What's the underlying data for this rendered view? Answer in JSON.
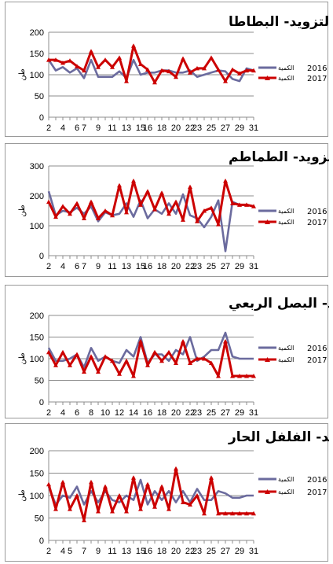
{
  "chart_data": [
    {
      "type": "line",
      "title": "تطور التزويد- البطاطا",
      "ylabel": "طن",
      "ylim": [
        0,
        200
      ],
      "yticks": [
        0,
        50,
        100,
        150,
        200
      ],
      "xticks": [
        2,
        4,
        6,
        7,
        9,
        11,
        13,
        15,
        16,
        18,
        20,
        22,
        23,
        25,
        27,
        29,
        31
      ],
      "x": [
        2,
        3,
        4,
        5,
        6,
        7,
        8,
        9,
        10,
        11,
        12,
        13,
        14,
        15,
        16,
        17,
        18,
        19,
        20,
        21,
        22,
        23,
        24,
        25,
        26,
        27,
        28,
        29,
        30,
        31
      ],
      "legend_position": "right",
      "series": [
        {
          "legend_year": "2016",
          "legend_word": "الكمية",
          "color": "#6b6b9e",
          "values": [
            135,
            110,
            118,
            105,
            115,
            92,
            135,
            95,
            95,
            95,
            108,
            92,
            135,
            100,
            105,
            105,
            110,
            110,
            105,
            105,
            110,
            95,
            100,
            105,
            110,
            108,
            90,
            85,
            115,
            110
          ]
        },
        {
          "legend_year": "2017",
          "legend_word": "الكمية",
          "color": "#cc0000",
          "values": [
            135,
            135,
            128,
            133,
            120,
            110,
            155,
            118,
            135,
            118,
            140,
            85,
            168,
            125,
            112,
            82,
            110,
            108,
            95,
            138,
            105,
            115,
            115,
            140,
            112,
            85,
            112,
            103,
            110,
            110
          ]
        }
      ]
    },
    {
      "type": "line",
      "title": "تطور التزويد- الطماطم",
      "ylabel": "طن",
      "ylim": [
        0,
        300
      ],
      "yticks": [
        0,
        100,
        200,
        300
      ],
      "xticks": [
        2,
        4,
        6,
        7,
        9,
        11,
        13,
        15,
        16,
        18,
        20,
        22,
        23,
        25,
        27,
        29,
        31
      ],
      "x": [
        2,
        3,
        4,
        5,
        6,
        7,
        8,
        9,
        10,
        11,
        12,
        13,
        14,
        15,
        16,
        17,
        18,
        19,
        20,
        21,
        22,
        23,
        24,
        25,
        26,
        27,
        28,
        29,
        30,
        31
      ],
      "legend_position": "right",
      "series": [
        {
          "legend_year": "2016",
          "legend_word": "الكمية",
          "color": "#6b6b9e",
          "values": [
            215,
            135,
            150,
            145,
            160,
            140,
            165,
            115,
            145,
            135,
            140,
            175,
            130,
            185,
            125,
            155,
            140,
            175,
            140,
            205,
            135,
            125,
            95,
            130,
            185,
            15,
            180,
            170,
            170,
            165
          ]
        },
        {
          "legend_year": "2017",
          "legend_word": "الكمية",
          "color": "#cc0000",
          "values": [
            180,
            130,
            165,
            140,
            175,
            125,
            180,
            125,
            150,
            135,
            235,
            145,
            250,
            170,
            215,
            155,
            210,
            140,
            180,
            120,
            230,
            115,
            150,
            160,
            105,
            250,
            175,
            170,
            170,
            165
          ]
        }
      ]
    },
    {
      "type": "line",
      "title": "تطور التزويد- البصل الربعي",
      "ylabel": "طن",
      "ylim": [
        0,
        200
      ],
      "yticks": [
        0,
        50,
        100,
        150,
        200
      ],
      "xticks": [
        2,
        4,
        6,
        8,
        10,
        12,
        14,
        16,
        18,
        20,
        22,
        23,
        25,
        27,
        29,
        31
      ],
      "x": [
        2,
        3,
        4,
        5,
        6,
        7,
        8,
        9,
        10,
        11,
        12,
        13,
        14,
        15,
        16,
        17,
        18,
        19,
        20,
        21,
        22,
        23,
        24,
        25,
        26,
        27,
        28,
        29,
        30,
        31
      ],
      "legend_position": "right",
      "series": [
        {
          "legend_year": "2016",
          "legend_word": "الكمية",
          "color": "#6b6b9e",
          "values": [
            125,
            95,
            95,
            100,
            110,
            80,
            125,
            95,
            105,
            95,
            90,
            120,
            105,
            150,
            90,
            110,
            110,
            95,
            120,
            110,
            150,
            95,
            105,
            120,
            120,
            160,
            105,
            100,
            100,
            100
          ]
        },
        {
          "legend_year": "2017",
          "legend_word": "الكمية",
          "color": "#cc0000",
          "values": [
            115,
            85,
            115,
            85,
            110,
            70,
            105,
            70,
            105,
            95,
            65,
            95,
            60,
            140,
            85,
            115,
            95,
            115,
            90,
            140,
            90,
            100,
            100,
            90,
            60,
            140,
            60,
            60,
            60,
            60
          ]
        }
      ]
    },
    {
      "type": "line",
      "title": "تطورالتزويد- الفلفل الحار",
      "ylabel": "طن",
      "ylim": [
        0,
        200
      ],
      "yticks": [
        0,
        50,
        100,
        150,
        200
      ],
      "xticks": [
        2,
        4,
        5,
        7,
        9,
        11,
        13,
        15,
        16,
        18,
        20,
        22,
        23,
        25,
        27,
        29,
        31
      ],
      "x": [
        2,
        3,
        4,
        5,
        6,
        7,
        8,
        9,
        10,
        11,
        12,
        13,
        14,
        15,
        16,
        17,
        18,
        19,
        20,
        21,
        22,
        23,
        24,
        25,
        26,
        27,
        28,
        29,
        30,
        31
      ],
      "legend_position": "right",
      "series": [
        {
          "legend_year": "2016",
          "legend_word": "الكمية",
          "color": "#6b6b9e",
          "values": [
            120,
            80,
            100,
            95,
            120,
            80,
            110,
            85,
            110,
            90,
            85,
            100,
            90,
            135,
            80,
            110,
            90,
            110,
            85,
            110,
            85,
            115,
            90,
            90,
            110,
            105,
            95,
            95,
            100,
            100
          ]
        },
        {
          "legend_year": "2017",
          "legend_word": "الكمية",
          "color": "#cc0000",
          "values": [
            125,
            70,
            130,
            70,
            100,
            45,
            130,
            65,
            120,
            65,
            100,
            65,
            140,
            70,
            125,
            75,
            120,
            70,
            160,
            85,
            80,
            100,
            60,
            140,
            60,
            60,
            60,
            60,
            60,
            60
          ]
        }
      ]
    }
  ]
}
